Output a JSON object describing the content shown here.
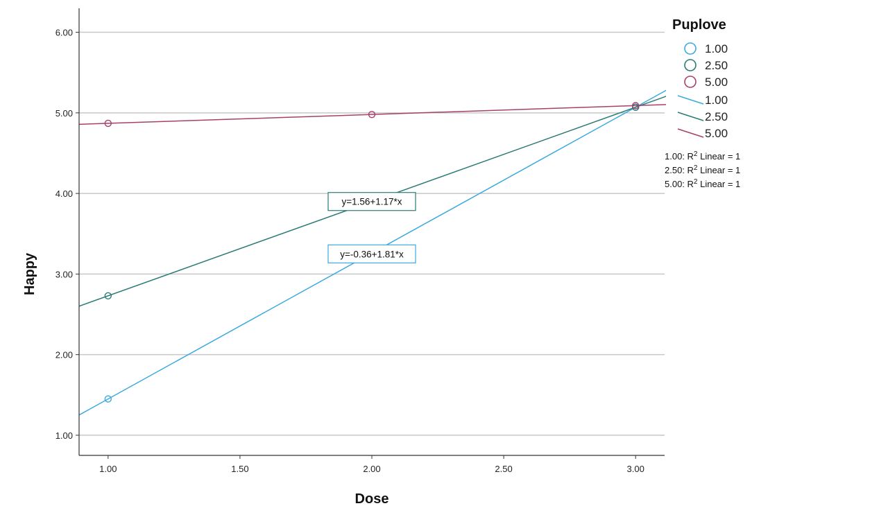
{
  "chart_data": {
    "type": "scatter",
    "xlabel": "Dose",
    "ylabel": "Happy",
    "xlim": [
      0.89,
      3.11
    ],
    "ylim": [
      0.75,
      6.28
    ],
    "x_ticks": [
      "1.00",
      "1.50",
      "2.00",
      "2.50",
      "3.00"
    ],
    "x_tick_values": [
      1,
      1.5,
      2,
      2.5,
      3
    ],
    "y_ticks": [
      "1.00",
      "2.00",
      "3.00",
      "4.00",
      "5.00",
      "6.00"
    ],
    "y_tick_values": [
      1,
      2,
      3,
      4,
      5,
      6
    ],
    "grid": "horizontal",
    "legend_title": "Puplove",
    "legend_position": "right",
    "series": [
      {
        "name": "1.00",
        "color": "#3ba9e0",
        "points": [
          {
            "x": 1,
            "y": 1.45
          },
          {
            "x": 3,
            "y": 5.07
          }
        ],
        "fit": {
          "intercept": -0.36,
          "slope": 1.81,
          "label": "y=-0.36+1.81*x",
          "label_at": {
            "x": 2.0,
            "y": 3.25
          }
        }
      },
      {
        "name": "2.50",
        "color": "#2a7a76",
        "points": [
          {
            "x": 1,
            "y": 2.73
          },
          {
            "x": 3,
            "y": 5.07
          }
        ],
        "fit": {
          "intercept": 1.56,
          "slope": 1.17,
          "label": "y=1.56+1.17*x",
          "label_at": {
            "x": 2.0,
            "y": 3.9
          }
        }
      },
      {
        "name": "5.00",
        "color": "#a83e6a",
        "points": [
          {
            "x": 1,
            "y": 4.87
          },
          {
            "x": 2,
            "y": 4.98
          },
          {
            "x": 3,
            "y": 5.09
          }
        ],
        "fit": {
          "intercept": 4.76,
          "slope": 0.11,
          "label": "",
          "label_at": null
        }
      }
    ],
    "r2_notes": [
      "1.00: R",
      "2.50: R",
      "5.00: R"
    ],
    "r2_suffix": " Linear = 1",
    "r2_sup": "2"
  }
}
